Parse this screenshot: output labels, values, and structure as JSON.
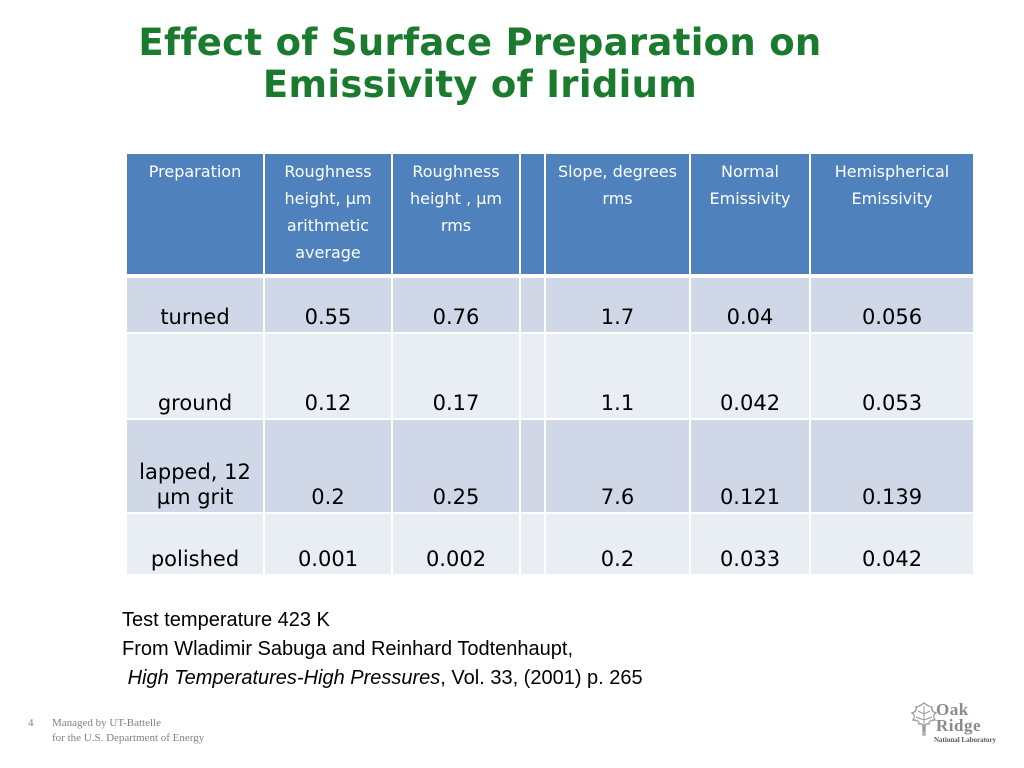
{
  "title": {
    "line1": "Effect of Surface Preparation on",
    "line2": "Emissivity of Iridium"
  },
  "table": {
    "headers": [
      "Preparation",
      "Roughness height, µm arithmetic average",
      "Roughness height , µm rms",
      "",
      "Slope, degrees rms",
      "Normal Emissivity",
      "Hemispherical Emissivity"
    ],
    "rows": [
      [
        "turned",
        "0.55",
        "0.76",
        "",
        "1.7",
        "0.04",
        "0.056"
      ],
      [
        "ground",
        "0.12",
        "0.17",
        "",
        "1.1",
        "0.042",
        "0.053"
      ],
      [
        "lapped, 12 µm grit",
        "0.2",
        "0.25",
        "",
        "7.6",
        "0.121",
        "0.139"
      ],
      [
        "polished",
        "0.001",
        "0.002",
        "",
        "0.2",
        "0.033",
        "0.042"
      ]
    ]
  },
  "notes": {
    "line1": "Test temperature 423 K",
    "line2": "From Wladimir Sabuga and Reinhard Todtenhaupt,",
    "journal": "High Temperatures-High Pressures",
    "citation": ", Vol. 33, (2001) p. 265"
  },
  "footer": {
    "page_number": "4",
    "line1": "Managed by UT-Battelle",
    "line2": "for the U.S. Department of Energy"
  },
  "logo": {
    "word1": "Oak",
    "word2": "Ridge",
    "subtitle": "National Laboratory",
    "icon": "oak-leaf-icon"
  },
  "colors": {
    "title": "#1a7a2e",
    "header_bg": "#4f81bd",
    "row_odd": "#d0d8e8",
    "row_even": "#e9edf4"
  }
}
